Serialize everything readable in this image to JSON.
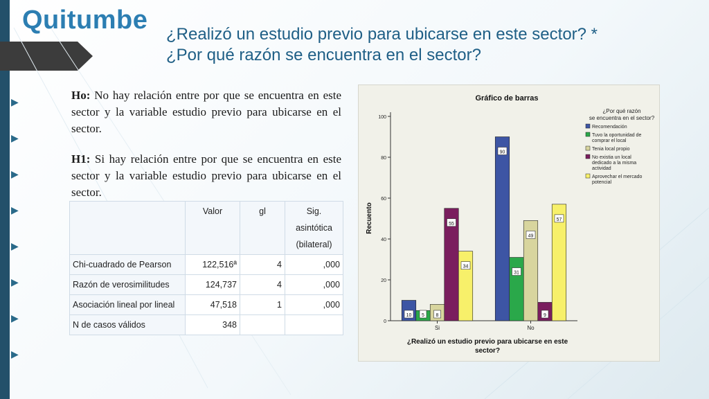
{
  "brand": "Quitumbe",
  "title": {
    "line1": "¿Realizó un estudio previo para ubicarse en este sector? *",
    "line2": "¿Por qué razón se encuentra en el sector?"
  },
  "hypotheses": {
    "h0_label": "Ho:",
    "h0_text": "No hay relación entre por que se encuentra en este sector y la variable estudio previo para ubicarse en el sector.",
    "h1_label": "H1:",
    "h1_text": "Si hay relación entre por que se encuentra en este sector y la variable estudio previo para ubicarse en el sector."
  },
  "stats_table": {
    "headers": [
      "",
      "Valor",
      "gl",
      "Sig. asintótica (bilateral)"
    ],
    "rows": [
      [
        "Chi-cuadrado de Pearson",
        "122,516ª",
        "4",
        ",000"
      ],
      [
        "Razón de verosimilitudes",
        "124,737",
        "4",
        ",000"
      ],
      [
        "Asociación lineal por lineal",
        "47,518",
        "1",
        ",000"
      ],
      [
        "N de casos válidos",
        "348",
        "",
        ""
      ]
    ]
  },
  "chart_data": {
    "type": "bar",
    "title": "Gráfico de barras",
    "xlabel": "¿Realizó un estudio previo para ubicarse en este sector?",
    "ylabel": "Recuento",
    "ylim": [
      0,
      100
    ],
    "yticks": [
      0,
      20,
      40,
      60,
      80,
      100
    ],
    "categories": [
      "Si",
      "No"
    ],
    "legend_title": "¿Por qué razón se encuentra en el sector?",
    "legend_position": "top-right",
    "series": [
      {
        "name": "Recomendación",
        "color": "#3d55a4",
        "values": [
          10,
          90
        ]
      },
      {
        "name": "Tuvo la oportunidad de comprar el local",
        "color": "#2aa84a",
        "values": [
          5,
          31
        ]
      },
      {
        "name": "Tenia local propio",
        "color": "#d8d59e",
        "values": [
          8,
          49
        ]
      },
      {
        "name": "No existia un local dedicado a la misma actividad",
        "color": "#7a1e5e",
        "values": [
          55,
          9
        ]
      },
      {
        "name": "Aprovechar el mercado potencial",
        "color": "#f7f06a",
        "values": [
          34,
          57
        ]
      }
    ]
  }
}
